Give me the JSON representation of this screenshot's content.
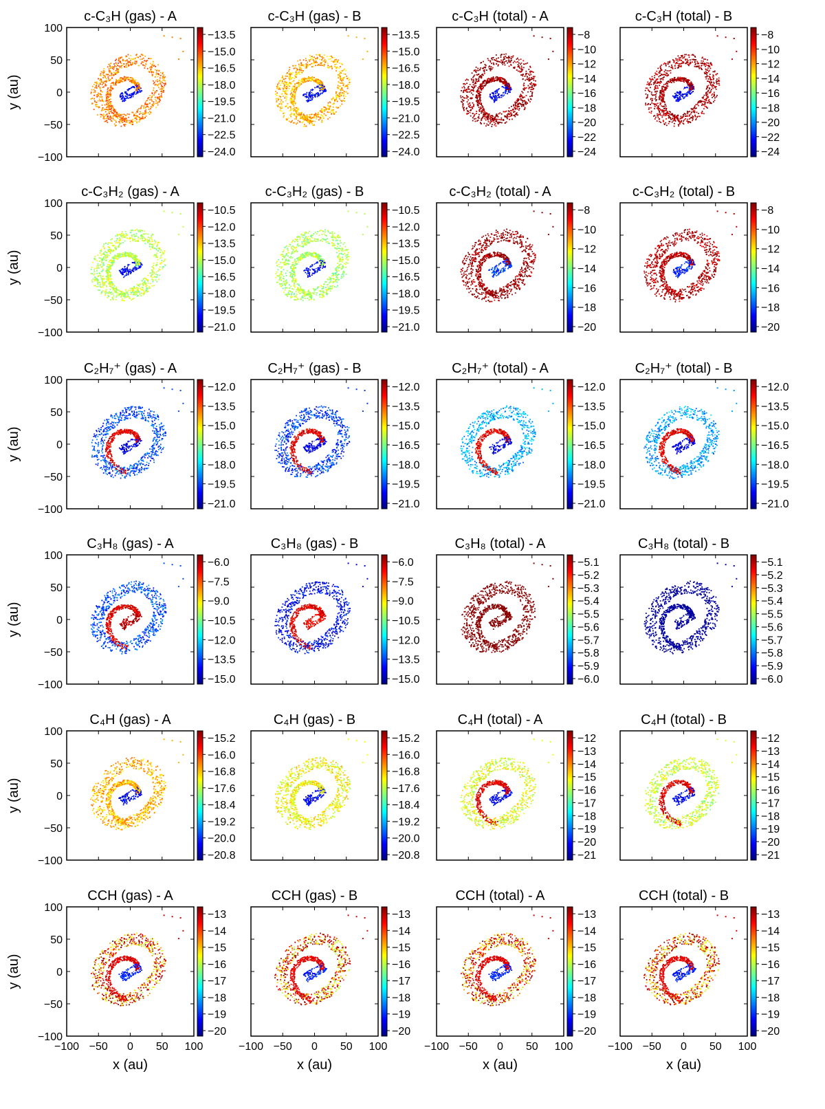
{
  "figure": {
    "x_axis_label": "x (au)",
    "y_axis_label": "y (au)",
    "x_ticks": [
      "−100",
      "−50",
      "0",
      "50",
      "100"
    ],
    "y_ticks": [
      "100",
      "50",
      "0",
      "−50",
      "−100"
    ],
    "colormap": [
      "#00007f",
      "#0000ff",
      "#007fff",
      "#00ffff",
      "#7fff7f",
      "#ffff00",
      "#ff7f00",
      "#ff0000",
      "#7f0000"
    ]
  },
  "chart_data": [
    {
      "type": "scatter",
      "title": "c-C₃H (gas) -  A",
      "xlabel": "x (au)",
      "ylabel": "y (au)",
      "xlim": [
        -100,
        100
      ],
      "ylim": [
        -100,
        100
      ],
      "colorbar": {
        "ticks": [
          "−13.5",
          "−15.0",
          "−16.5",
          "−18.0",
          "−19.5",
          "−21.0",
          "−22.5",
          "−24.0"
        ]
      },
      "level": 0.78,
      "pattern": 0,
      "outer": 0.75,
      "inner": 0.12
    },
    {
      "type": "scatter",
      "title": "c-C₃H (gas) -  B",
      "xlabel": "x (au)",
      "ylabel": "y (au)",
      "xlim": [
        -100,
        100
      ],
      "ylim": [
        -100,
        100
      ],
      "colorbar": {
        "ticks": [
          "−13.5",
          "−15.0",
          "−16.5",
          "−18.0",
          "−19.5",
          "−21.0",
          "−22.5",
          "−24.0"
        ]
      },
      "level": 0.76,
      "pattern": 0,
      "outer": 0.7,
      "inner": 0.12
    },
    {
      "type": "scatter",
      "title": "c-C₃H (total) -  A",
      "xlabel": "x (au)",
      "ylabel": "y (au)",
      "xlim": [
        -100,
        100
      ],
      "ylim": [
        -100,
        100
      ],
      "colorbar": {
        "ticks": [
          "−8",
          "−10",
          "−12",
          "−14",
          "−16",
          "−18",
          "−20",
          "−22",
          "−24"
        ]
      },
      "level": 0.98,
      "pattern": 0,
      "outer": 0.98,
      "inner": 0.12
    },
    {
      "type": "scatter",
      "title": "c-C₃H (total) -  B",
      "xlabel": "x (au)",
      "ylabel": "y (au)",
      "xlim": [
        -100,
        100
      ],
      "ylim": [
        -100,
        100
      ],
      "colorbar": {
        "ticks": [
          "−8",
          "−10",
          "−12",
          "−14",
          "−16",
          "−18",
          "−20",
          "−22",
          "−24"
        ]
      },
      "level": 0.98,
      "pattern": 0,
      "outer": 0.96,
      "inner": 0.12
    },
    {
      "type": "scatter",
      "title": "c-C₃H₂ (gas) -  A",
      "xlabel": "x (au)",
      "ylabel": "y (au)",
      "xlim": [
        -100,
        100
      ],
      "ylim": [
        -100,
        100
      ],
      "colorbar": {
        "ticks": [
          "−10.5",
          "−12.0",
          "−13.5",
          "−15.0",
          "−16.5",
          "−18.0",
          "−19.5",
          "−21.0"
        ]
      },
      "level": 0.6,
      "pattern": 0,
      "outer": 0.56,
      "inner": 0.12
    },
    {
      "type": "scatter",
      "title": "c-C₃H₂ (gas) -  B",
      "xlabel": "x (au)",
      "ylabel": "y (au)",
      "xlim": [
        -100,
        100
      ],
      "ylim": [
        -100,
        100
      ],
      "colorbar": {
        "ticks": [
          "−10.5",
          "−12.0",
          "−13.5",
          "−15.0",
          "−16.5",
          "−18.0",
          "−19.5",
          "−21.0"
        ]
      },
      "level": 0.58,
      "pattern": 0,
      "outer": 0.55,
      "inner": 0.12
    },
    {
      "type": "scatter",
      "title": "c-C₃H₂ (total) -  A",
      "xlabel": "x (au)",
      "ylabel": "y (au)",
      "xlim": [
        -100,
        100
      ],
      "ylim": [
        -100,
        100
      ],
      "colorbar": {
        "ticks": [
          "−8",
          "−10",
          "−12",
          "−14",
          "−16",
          "−18",
          "−20"
        ]
      },
      "level": 0.98,
      "pattern": 0,
      "outer": 0.98,
      "inner": 0.18
    },
    {
      "type": "scatter",
      "title": "c-C₃H₂ (total) -  B",
      "xlabel": "x (au)",
      "ylabel": "y (au)",
      "xlim": [
        -100,
        100
      ],
      "ylim": [
        -100,
        100
      ],
      "colorbar": {
        "ticks": [
          "−8",
          "−10",
          "−12",
          "−14",
          "−16",
          "−18",
          "−20"
        ]
      },
      "level": 0.96,
      "pattern": 0,
      "outer": 0.95,
      "inner": 0.16
    },
    {
      "type": "scatter",
      "title": "C₂H₇⁺ (gas) -  A",
      "xlabel": "x (au)",
      "ylabel": "y (au)",
      "xlim": [
        -100,
        100
      ],
      "ylim": [
        -100,
        100
      ],
      "colorbar": {
        "ticks": [
          "−12.0",
          "−13.5",
          "−15.0",
          "−16.5",
          "−18.0",
          "−19.5",
          "−21.0"
        ]
      },
      "level": 0.32,
      "pattern": 1,
      "outer": 0.2,
      "inner": 0.1
    },
    {
      "type": "scatter",
      "title": "C₂H₇⁺ (gas) -  B",
      "xlabel": "x (au)",
      "ylabel": "y (au)",
      "xlim": [
        -100,
        100
      ],
      "ylim": [
        -100,
        100
      ],
      "colorbar": {
        "ticks": [
          "−12.0",
          "−13.5",
          "−15.0",
          "−16.5",
          "−18.0",
          "−19.5",
          "−21.0"
        ]
      },
      "level": 0.3,
      "pattern": 1,
      "outer": 0.18,
      "inner": 0.1
    },
    {
      "type": "scatter",
      "title": "C₂H₇⁺ (total) -  A",
      "xlabel": "x (au)",
      "ylabel": "y (au)",
      "xlim": [
        -100,
        100
      ],
      "ylim": [
        -100,
        100
      ],
      "colorbar": {
        "ticks": [
          "−12.0",
          "−13.5",
          "−15.0",
          "−16.5",
          "−18.0",
          "−19.5",
          "−21.0"
        ]
      },
      "level": 0.36,
      "pattern": 1,
      "outer": 0.3,
      "inner": 0.1
    },
    {
      "type": "scatter",
      "title": "C₂H₇⁺ (total) -  B",
      "xlabel": "x (au)",
      "ylabel": "y (au)",
      "xlim": [
        -100,
        100
      ],
      "ylim": [
        -100,
        100
      ],
      "colorbar": {
        "ticks": [
          "−12.0",
          "−13.5",
          "−15.0",
          "−16.5",
          "−18.0",
          "−19.5",
          "−21.0"
        ]
      },
      "level": 0.34,
      "pattern": 1,
      "outer": 0.28,
      "inner": 0.1
    },
    {
      "type": "scatter",
      "title": "C₃H₈ (gas) -  A",
      "xlabel": "x (au)",
      "ylabel": "y (au)",
      "xlim": [
        -100,
        100
      ],
      "ylim": [
        -100,
        100
      ],
      "colorbar": {
        "ticks": [
          "−6.0",
          "−7.5",
          "−9.0",
          "−10.5",
          "−12.0",
          "−13.5",
          "−15.0"
        ]
      },
      "level": 0.18,
      "pattern": 2,
      "outer": 0.2,
      "inner": 0.95
    },
    {
      "type": "scatter",
      "title": "C₃H₈ (gas) -  B",
      "xlabel": "x (au)",
      "ylabel": "y (au)",
      "xlim": [
        -100,
        100
      ],
      "ylim": [
        -100,
        100
      ],
      "colorbar": {
        "ticks": [
          "−6.0",
          "−7.5",
          "−9.0",
          "−10.5",
          "−12.0",
          "−13.5",
          "−15.0"
        ]
      },
      "level": 0.12,
      "pattern": 2,
      "outer": 0.12,
      "inner": 0.88
    },
    {
      "type": "scatter",
      "title": "C₃H₈ (total) -  A",
      "xlabel": "x (au)",
      "ylabel": "y (au)",
      "xlim": [
        -100,
        100
      ],
      "ylim": [
        -100,
        100
      ],
      "colorbar": {
        "ticks": [
          "−5.1",
          "−5.2",
          "−5.3",
          "−5.4",
          "−5.5",
          "−5.6",
          "−5.7",
          "−5.8",
          "−5.9",
          "−6.0"
        ]
      },
      "level": 0.99,
      "pattern": 3,
      "outer": 0.99,
      "inner": 0.99
    },
    {
      "type": "scatter",
      "title": "C₃H₈ (total) -  B",
      "xlabel": "x (au)",
      "ylabel": "y (au)",
      "xlim": [
        -100,
        100
      ],
      "ylim": [
        -100,
        100
      ],
      "colorbar": {
        "ticks": [
          "−5.1",
          "−5.2",
          "−5.3",
          "−5.4",
          "−5.5",
          "−5.6",
          "−5.7",
          "−5.8",
          "−5.9",
          "−6.0"
        ]
      },
      "level": 0.03,
      "pattern": 3,
      "outer": 0.03,
      "inner": 0.03
    },
    {
      "type": "scatter",
      "title": "C₄H (gas) -  A",
      "xlabel": "x (au)",
      "ylabel": "y (au)",
      "xlim": [
        -100,
        100
      ],
      "ylim": [
        -100,
        100
      ],
      "colorbar": {
        "ticks": [
          "−15.2",
          "−16.0",
          "−16.8",
          "−17.6",
          "−18.4",
          "−19.2",
          "−20.0",
          "−20.8"
        ]
      },
      "level": 0.66,
      "pattern": 0,
      "outer": 0.7,
      "inner": 0.12
    },
    {
      "type": "scatter",
      "title": "C₄H (gas) -  B",
      "xlabel": "x (au)",
      "ylabel": "y (au)",
      "xlim": [
        -100,
        100
      ],
      "ylim": [
        -100,
        100
      ],
      "colorbar": {
        "ticks": [
          "−15.2",
          "−16.0",
          "−16.8",
          "−17.6",
          "−18.4",
          "−19.2",
          "−20.0",
          "−20.8"
        ]
      },
      "level": 0.55,
      "pattern": 0,
      "outer": 0.62,
      "inner": 0.12
    },
    {
      "type": "scatter",
      "title": "C₄H (total) -  A",
      "xlabel": "x (au)",
      "ylabel": "y (au)",
      "xlim": [
        -100,
        100
      ],
      "ylim": [
        -100,
        100
      ],
      "colorbar": {
        "ticks": [
          "−12",
          "−13",
          "−14",
          "−15",
          "−16",
          "−17",
          "−18",
          "−19",
          "−20",
          "−21"
        ]
      },
      "level": 0.5,
      "pattern": 1,
      "outer": 0.6,
      "inner": 0.12
    },
    {
      "type": "scatter",
      "title": "C₄H (total) -  B",
      "xlabel": "x (au)",
      "ylabel": "y (au)",
      "xlim": [
        -100,
        100
      ],
      "ylim": [
        -100,
        100
      ],
      "colorbar": {
        "ticks": [
          "−12",
          "−13",
          "−14",
          "−15",
          "−16",
          "−17",
          "−18",
          "−19",
          "−20",
          "−21"
        ]
      },
      "level": 0.48,
      "pattern": 1,
      "outer": 0.58,
      "inner": 0.12
    },
    {
      "type": "scatter",
      "title": "CCH (gas) -  A",
      "xlabel": "x (au)",
      "ylabel": "y (au)",
      "xlim": [
        -100,
        100
      ],
      "ylim": [
        -100,
        100
      ],
      "colorbar": {
        "ticks": [
          "−13",
          "−14",
          "−15",
          "−16",
          "−17",
          "−18",
          "−19",
          "−20"
        ]
      },
      "level": 0.62,
      "pattern": 4,
      "outer": 0.92,
      "inner": 0.15
    },
    {
      "type": "scatter",
      "title": "CCH (gas) -  B",
      "xlabel": "x (au)",
      "ylabel": "y (au)",
      "xlim": [
        -100,
        100
      ],
      "ylim": [
        -100,
        100
      ],
      "colorbar": {
        "ticks": [
          "−13",
          "−14",
          "−15",
          "−16",
          "−17",
          "−18",
          "−19",
          "−20"
        ]
      },
      "level": 0.62,
      "pattern": 4,
      "outer": 0.92,
      "inner": 0.15
    },
    {
      "type": "scatter",
      "title": "CCH (total) -  A",
      "xlabel": "x (au)",
      "ylabel": "y (au)",
      "xlim": [
        -100,
        100
      ],
      "ylim": [
        -100,
        100
      ],
      "colorbar": {
        "ticks": [
          "−13",
          "−14",
          "−15",
          "−16",
          "−17",
          "−18",
          "−19",
          "−20"
        ]
      },
      "level": 0.64,
      "pattern": 4,
      "outer": 0.92,
      "inner": 0.15
    },
    {
      "type": "scatter",
      "title": "CCH (total) -  B",
      "xlabel": "x (au)",
      "ylabel": "y (au)",
      "xlim": [
        -100,
        100
      ],
      "ylim": [
        -100,
        100
      ],
      "colorbar": {
        "ticks": [
          "−13",
          "−14",
          "−15",
          "−16",
          "−17",
          "−18",
          "−19",
          "−20"
        ]
      },
      "level": 0.64,
      "pattern": 4,
      "outer": 0.92,
      "inner": 0.15
    }
  ]
}
